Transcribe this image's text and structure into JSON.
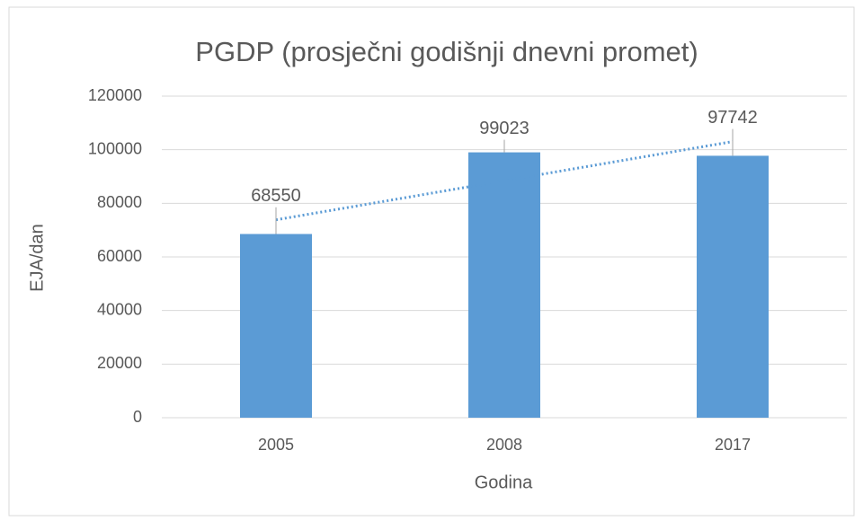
{
  "chart_data": {
    "type": "bar",
    "title": "PGDP (prosječni godišnji dnevni promet)",
    "x_label": "Godina",
    "y_label": "EJA/dan",
    "categories": [
      "2005",
      "2008",
      "2017"
    ],
    "values": [
      68550,
      99023,
      97742
    ],
    "color": "#5b9bd5",
    "ylim": [
      0,
      120000
    ],
    "yticks": [
      0,
      20000,
      40000,
      60000,
      80000,
      100000,
      120000
    ],
    "grid": true,
    "trendline": "linear"
  }
}
